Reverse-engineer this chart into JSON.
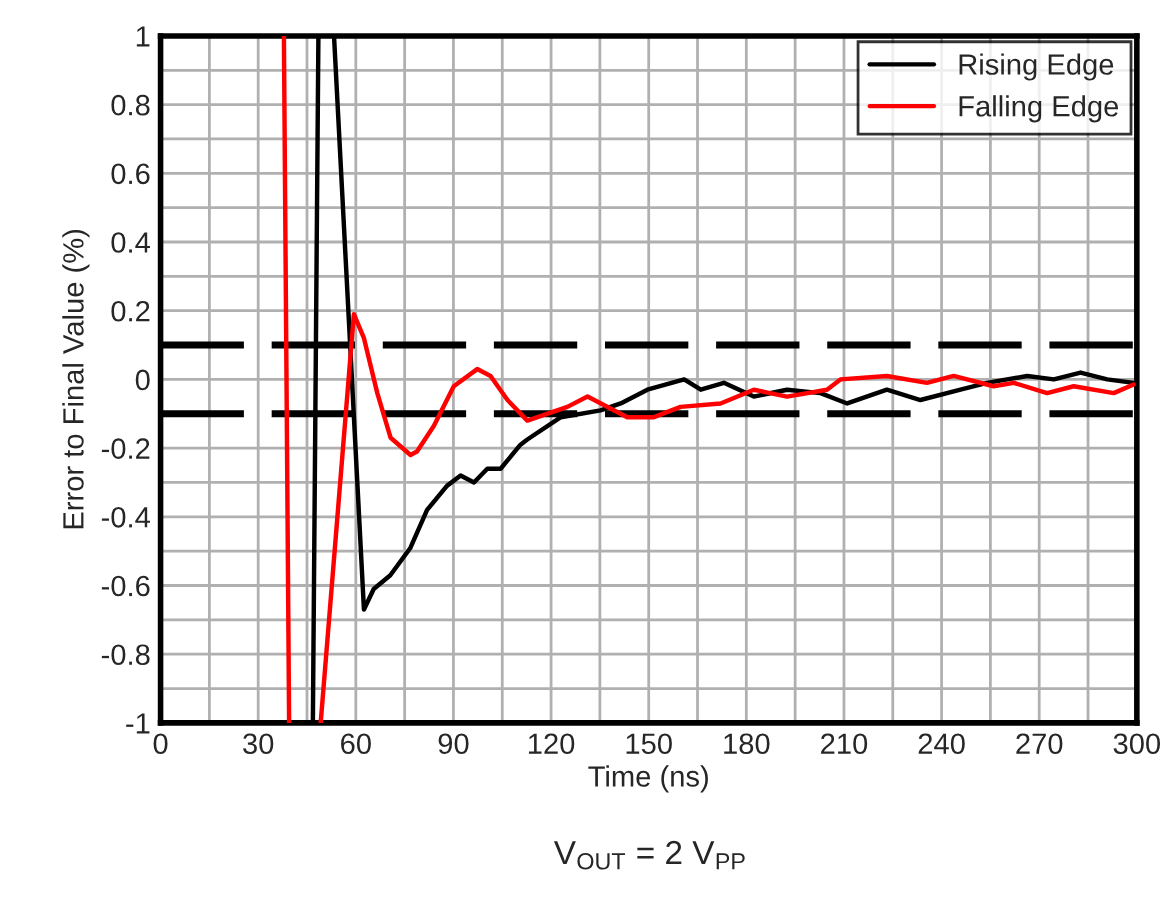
{
  "chart_data": {
    "type": "line",
    "xlabel": "Time (ns)",
    "ylabel": "Error to Final Value (%)",
    "annotations": [
      "V$_{OUT}$ = 2 V$_{PP}$"
    ],
    "xlim": [
      0,
      300
    ],
    "xticks": [
      0,
      {
        "value": 15,
        "label": null
      },
      30,
      {
        "value": 45,
        "label": null
      },
      60,
      {
        "value": 75,
        "label": null
      },
      90,
      {
        "value": 105,
        "label": null
      },
      120,
      {
        "value": 135,
        "label": null
      },
      150,
      {
        "value": 165,
        "label": null
      },
      180,
      {
        "value": 195,
        "label": null
      },
      210,
      {
        "value": 225,
        "label": null
      },
      240,
      {
        "value": 255,
        "label": null
      },
      270,
      {
        "value": 285,
        "label": null
      },
      300
    ],
    "ylim": [
      -1,
      1
    ],
    "yticks": [
      -1,
      {
        "value": -0.9,
        "label": null
      },
      -0.8,
      {
        "value": -0.7,
        "label": null
      },
      -0.6,
      {
        "value": -0.5,
        "label": null
      },
      -0.4,
      {
        "value": -0.3,
        "label": null
      },
      -0.2,
      0,
      0.2,
      {
        "value": 0.3,
        "label": null
      },
      0.4,
      {
        "value": 0.5,
        "label": null
      },
      0.6,
      {
        "value": 0.7,
        "label": null
      },
      0.8,
      {
        "value": 0.9,
        "label": null
      },
      1
    ],
    "grid": true,
    "legend": "top right",
    "line_style": "solid",
    "marker": "none",
    "ref_lines": [
      {
        "axis": "y",
        "value": 0.1,
        "color": "#000000",
        "line_style": "dashed"
      },
      {
        "axis": "y",
        "value": -0.1,
        "color": "#000000",
        "line_style": "dashed"
      }
    ],
    "series": [
      {
        "name": "Rising Edge",
        "color": "#000000",
        "x": [
          46.8,
          48.5,
          50.9,
          53.3,
          62.5,
          65.5,
          70.6,
          76.8,
          81.9,
          88,
          92.2,
          96.3,
          100.4,
          104.5,
          110.6,
          112.7,
          123,
          135.2,
          141.4,
          149.6,
          160.9,
          166,
          173.1,
          182.3,
          192.5,
          202.8,
          211,
          223.2,
          233.5,
          245.8,
          254,
          266.3,
          274.5,
          282.7,
          290.9,
          299
        ],
        "values": [
          -1,
          1,
          null,
          1,
          -0.67,
          -0.61,
          -0.57,
          -0.49,
          -0.38,
          -0.31,
          -0.28,
          -0.3,
          -0.26,
          -0.26,
          -0.19,
          -0.175,
          -0.11,
          -0.09,
          -0.07,
          -0.03,
          0.0,
          -0.03,
          -0.01,
          -0.05,
          -0.03,
          -0.04,
          -0.07,
          -0.03,
          -0.06,
          -0.03,
          -0.01,
          0.01,
          0.0,
          0.02,
          0.0,
          -0.01
        ]
      },
      {
        "name": "Falling Edge",
        "color": "#ff0000",
        "x": [
          37.9,
          39.5,
          44,
          49.2,
          59.4,
          62.5,
          66.6,
          70.7,
          76.8,
          78.8,
          84,
          90.1,
          97.3,
          101.4,
          106.6,
          112.7,
          125,
          131.2,
          143.4,
          151.6,
          159.8,
          172.1,
          182.3,
          192.5,
          204.8,
          208.9,
          223.2,
          235.5,
          243.7,
          256,
          262.2,
          272.4,
          280.6,
          292.9,
          299
        ],
        "values": [
          1,
          -1,
          null,
          -1,
          0.19,
          0.12,
          -0.04,
          -0.17,
          -0.22,
          -0.21,
          -0.135,
          -0.02,
          0.03,
          0.01,
          -0.06,
          -0.12,
          -0.08,
          -0.05,
          -0.11,
          -0.11,
          -0.08,
          -0.07,
          -0.03,
          -0.05,
          -0.03,
          0.0,
          0.01,
          -0.01,
          0.01,
          -0.02,
          -0.01,
          -0.04,
          -0.02,
          -0.04,
          -0.015
        ]
      }
    ]
  }
}
